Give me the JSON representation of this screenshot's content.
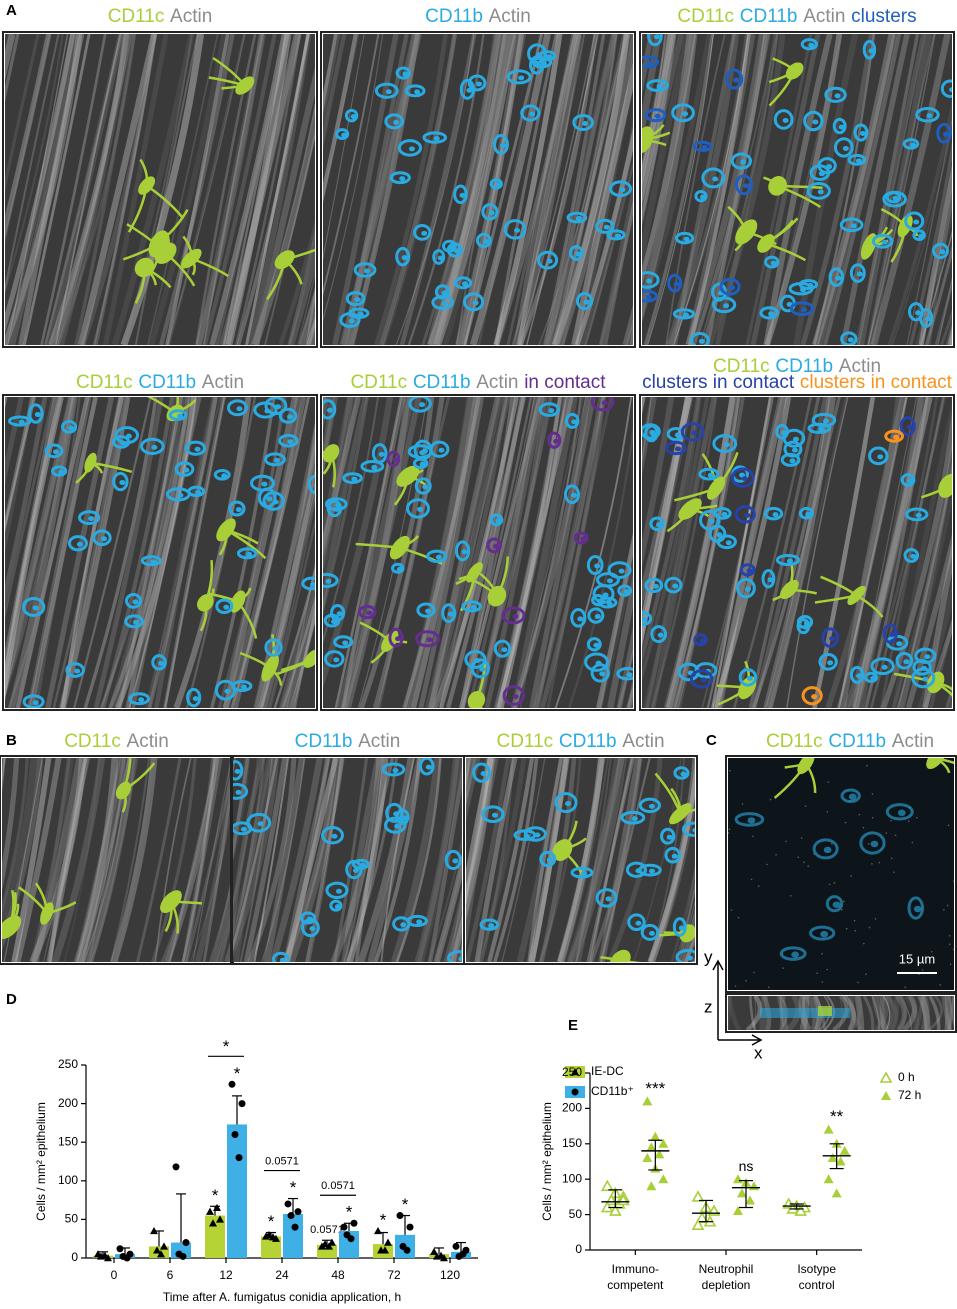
{
  "figure": {
    "A": {
      "label": "A",
      "images": [
        {
          "title": [
            [
              {
                "text": "CD11c",
                "color": "#a8cf38"
              },
              {
                "text": "Actin",
                "color": "#8c8c8c"
              }
            ]
          ]
        },
        {
          "title": [
            [
              {
                "text": "CD11b",
                "color": "#29abe2"
              },
              {
                "text": "Actin",
                "color": "#8c8c8c"
              }
            ]
          ]
        },
        {
          "title": [
            [
              {
                "text": "CD11c",
                "color": "#a8cf38"
              },
              {
                "text": "CD11b",
                "color": "#29abe2"
              },
              {
                "text": "Actin",
                "color": "#8c8c8c"
              },
              {
                "text": "clusters",
                "color": "#1f5fbf"
              }
            ]
          ]
        },
        {
          "title": [
            [
              {
                "text": "CD11c",
                "color": "#a8cf38"
              },
              {
                "text": "CD11b",
                "color": "#29abe2"
              },
              {
                "text": "Actin",
                "color": "#8c8c8c"
              }
            ]
          ]
        },
        {
          "title": [
            [
              {
                "text": "CD11c",
                "color": "#a8cf38"
              },
              {
                "text": "CD11b",
                "color": "#29abe2"
              },
              {
                "text": "Actin",
                "color": "#8c8c8c"
              },
              {
                "text": "in contact",
                "color": "#662d91"
              }
            ]
          ]
        },
        {
          "title": [
            [
              {
                "text": "CD11c",
                "color": "#a8cf38"
              },
              {
                "text": "CD11b",
                "color": "#29abe2"
              },
              {
                "text": "Actin",
                "color": "#8c8c8c"
              }
            ],
            [
              {
                "text": "clusters in contact",
                "color": "#2742a8"
              },
              {
                "text": "clusters in contact",
                "color": "#f7931e"
              }
            ]
          ]
        }
      ]
    },
    "B": {
      "label": "B",
      "images": [
        {
          "title": [
            [
              {
                "text": "CD11c",
                "color": "#a8cf38"
              },
              {
                "text": "Actin",
                "color": "#8c8c8c"
              }
            ]
          ]
        },
        {
          "title": [
            [
              {
                "text": "CD11b",
                "color": "#29abe2"
              },
              {
                "text": "Actin",
                "color": "#8c8c8c"
              }
            ]
          ]
        },
        {
          "title": [
            [
              {
                "text": "CD11c",
                "color": "#a8cf38"
              },
              {
                "text": "CD11b",
                "color": "#29abe2"
              },
              {
                "text": "Actin",
                "color": "#8c8c8c"
              }
            ]
          ]
        }
      ]
    },
    "C": {
      "label": "C",
      "title": [
        [
          {
            "text": "CD11c",
            "color": "#a8cf38"
          },
          {
            "text": "CD11b",
            "color": "#29abe2"
          },
          {
            "text": "Actin",
            "color": "#8c8c8c"
          }
        ]
      ],
      "axes": [
        "y",
        "z",
        "x"
      ],
      "scale_bar": "15 µm"
    }
  },
  "chart_data": [
    {
      "type": "bar",
      "label": "D",
      "categories": [
        "0",
        "6",
        "12",
        "24",
        "48",
        "72",
        "120"
      ],
      "xlabel": "Time after A. fumigatus conidia application, h",
      "ylabel": "Cells / mm² epithelium",
      "ylim": [
        0,
        250
      ],
      "yticks": [
        0,
        50,
        100,
        150,
        200,
        250
      ],
      "legend": "upper right",
      "series": [
        {
          "name": "IE-DC",
          "color": "#b5d334",
          "marker": "triangle",
          "values": [
            3,
            15,
            55,
            28,
            17,
            18,
            5
          ],
          "errors": [
            5,
            20,
            12,
            5,
            6,
            15,
            8
          ],
          "points": [
            [
              5,
              0,
              2,
              3
            ],
            [
              35,
              15,
              10,
              5
            ],
            [
              60,
              50,
              45,
              65
            ],
            [
              28,
              25,
              30,
              27
            ],
            [
              15,
              20,
              18,
              15
            ],
            [
              35,
              20,
              10,
              10
            ],
            [
              8,
              0,
              2,
              3
            ]
          ],
          "annotations": [
            null,
            null,
            "*",
            "*",
            "0.0571",
            "*",
            null
          ]
        },
        {
          "name": "CD11b⁺",
          "color": "#3fb0e6",
          "marker": "circle",
          "values": [
            5,
            20,
            173,
            57,
            35,
            30,
            8
          ],
          "errors": [
            8,
            63,
            37,
            20,
            10,
            25,
            12
          ],
          "points": [
            [
              12,
              5,
              2,
              0
            ],
            [
              118,
              20,
              5,
              2
            ],
            [
              225,
              200,
              160,
              130
            ],
            [
              70,
              60,
              55,
              40
            ],
            [
              40,
              45,
              30,
              25
            ],
            [
              55,
              40,
              15,
              10
            ],
            [
              15,
              10,
              2,
              5
            ]
          ],
          "annotations": [
            null,
            null,
            "*",
            "*",
            "*",
            "*",
            null
          ]
        }
      ],
      "comparisons": [
        {
          "category": "12",
          "label": "*"
        },
        {
          "category": "24",
          "label": "0.0571"
        },
        {
          "category": "48",
          "label": "0.0571"
        }
      ]
    },
    {
      "type": "scatter",
      "label": "E",
      "categories": [
        [
          "Immuno-",
          "competent"
        ],
        [
          "Neutrophil",
          "depletion"
        ],
        [
          "Isotype",
          "control"
        ]
      ],
      "ylabel": "Cells / mm² epithelium",
      "ylim": [
        0,
        250
      ],
      "yticks": [
        0,
        50,
        100,
        150,
        200,
        250
      ],
      "legend": "upper right",
      "series": [
        {
          "name": "0 h",
          "color": "#a8cf38",
          "marker": "open-triangle",
          "values": [
            68,
            52,
            62
          ],
          "lower": [
            60,
            40,
            58
          ],
          "upper": [
            85,
            70,
            65
          ],
          "points": [
            [
              90,
              80,
              75,
              70,
              65,
              60,
              55,
              70
            ],
            [
              75,
              60,
              55,
              45,
              40,
              35
            ],
            [
              65,
              62,
              60,
              58,
              55
            ]
          ]
        },
        {
          "name": "72 h",
          "color": "#a8cf38",
          "marker": "triangle",
          "values": [
            140,
            88,
            133
          ],
          "lower": [
            113,
            60,
            115
          ],
          "upper": [
            155,
            98,
            150
          ],
          "points": [
            [
              210,
              160,
              150,
              145,
              135,
              130,
              115,
              100,
              90
            ],
            [
              100,
              95,
              90,
              80,
              70,
              55
            ],
            [
              170,
              150,
              140,
              130,
              125,
              100,
              80
            ]
          ],
          "annotations": [
            "***",
            "ns",
            "**"
          ]
        }
      ]
    }
  ]
}
